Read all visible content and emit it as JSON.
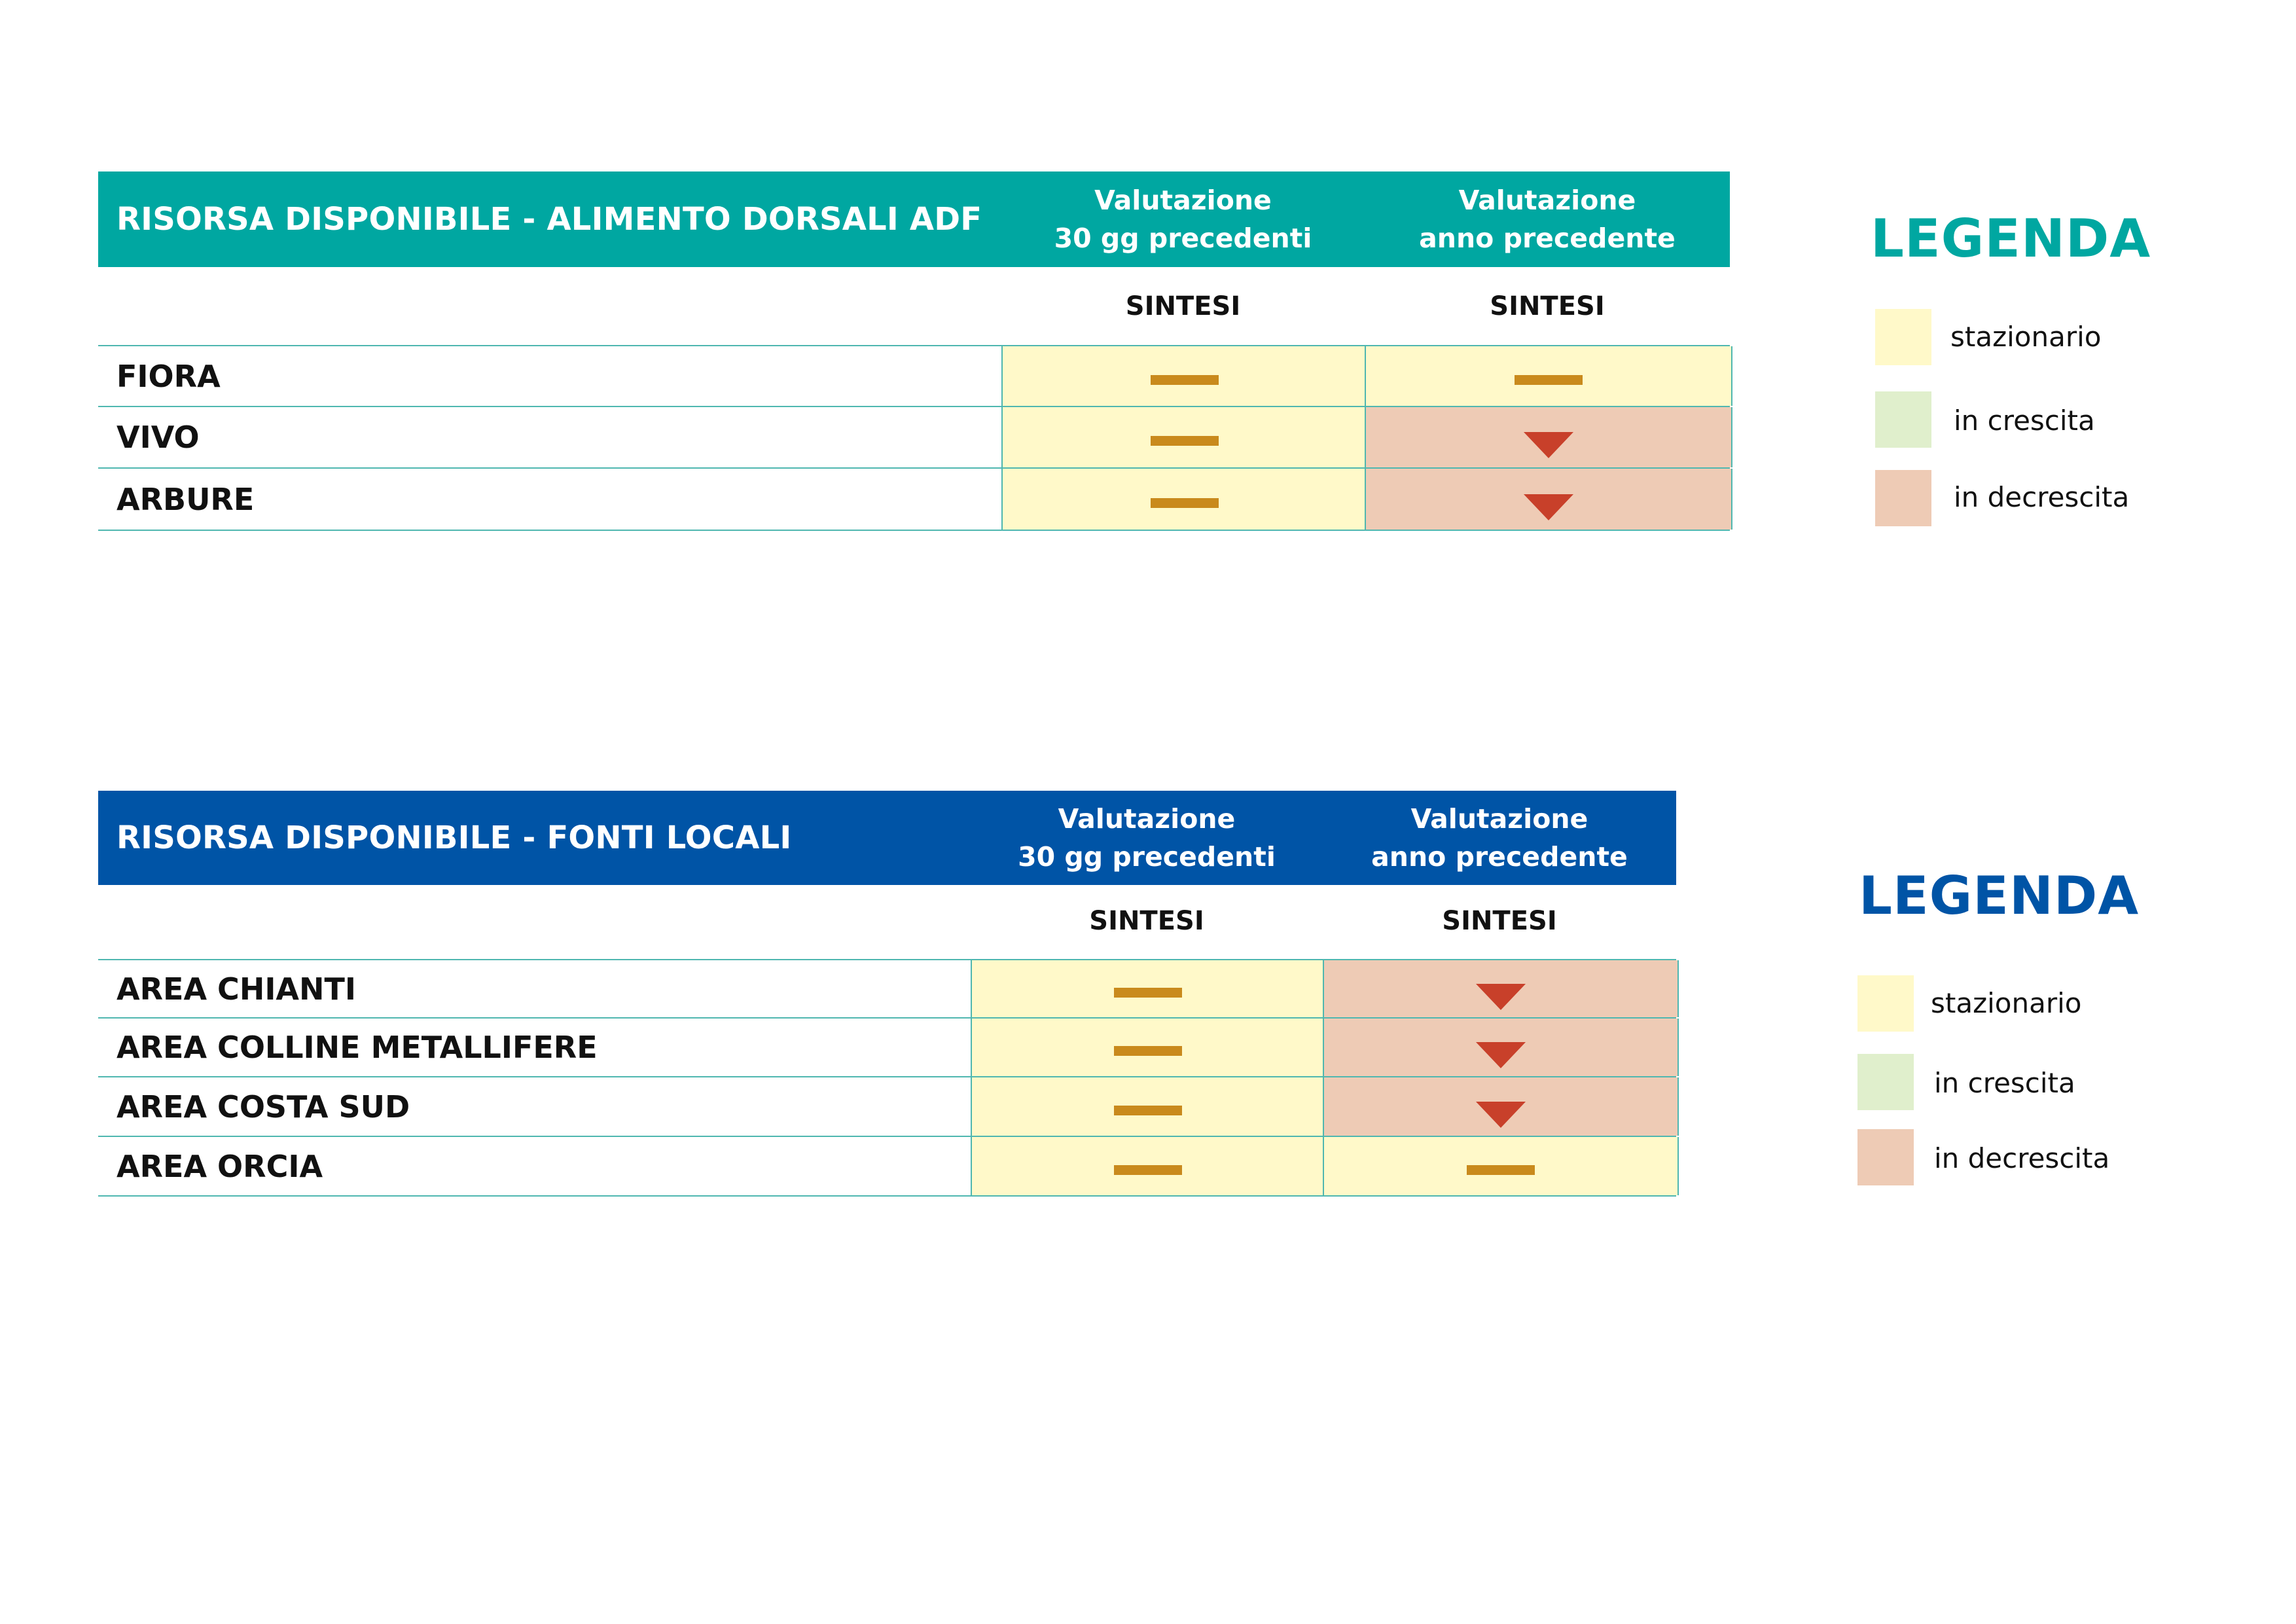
{
  "colors": {
    "teal_header": "#00a7a1",
    "blue_header": "#0054a6",
    "stazionario": "#fff9c9",
    "in_crescita": "#e0efcc",
    "in_decrescita": "#eecbb5",
    "dash_mark": "#c98a1c",
    "down_mark": "#c8402a"
  },
  "table1": {
    "title": "RISORSA DISPONIBILE - ALIMENTO DORSALI ADF",
    "col1_line1": "Valutazione",
    "col1_line2": "30 gg precedenti",
    "col2_line1": "Valutazione",
    "col2_line2": "anno precedente",
    "sub1": "SINTESI",
    "sub2": "SINTESI",
    "rows": [
      {
        "label": "FIORA",
        "c1": "stazionario",
        "c2": "stazionario"
      },
      {
        "label": "VIVO",
        "c1": "stazionario",
        "c2": "in decrescita"
      },
      {
        "label": "ARBURE",
        "c1": "stazionario",
        "c2": "in decrescita"
      }
    ]
  },
  "table2": {
    "title": "RISORSA DISPONIBILE - FONTI LOCALI",
    "col1_line1": "Valutazione",
    "col1_line2": "30 gg precedenti",
    "col2_line1": "Valutazione",
    "col2_line2": "anno precedente",
    "sub1": "SINTESI",
    "sub2": "SINTESI",
    "rows": [
      {
        "label": "AREA CHIANTI",
        "c1": "stazionario",
        "c2": "in decrescita"
      },
      {
        "label": "AREA COLLINE METALLIFERE",
        "c1": "stazionario",
        "c2": "in decrescita"
      },
      {
        "label": "AREA COSTA SUD",
        "c1": "stazionario",
        "c2": "in decrescita"
      },
      {
        "label": "AREA ORCIA",
        "c1": "stazionario",
        "c2": "stazionario"
      }
    ]
  },
  "legend1": {
    "title": "LEGENDA",
    "items": [
      {
        "label": "stazionario"
      },
      {
        "label": "in crescita"
      },
      {
        "label": "in decrescita"
      }
    ]
  },
  "legend2": {
    "title": "LEGENDA",
    "items": [
      {
        "label": "stazionario"
      },
      {
        "label": "in crescita"
      },
      {
        "label": "in decrescita"
      }
    ]
  }
}
